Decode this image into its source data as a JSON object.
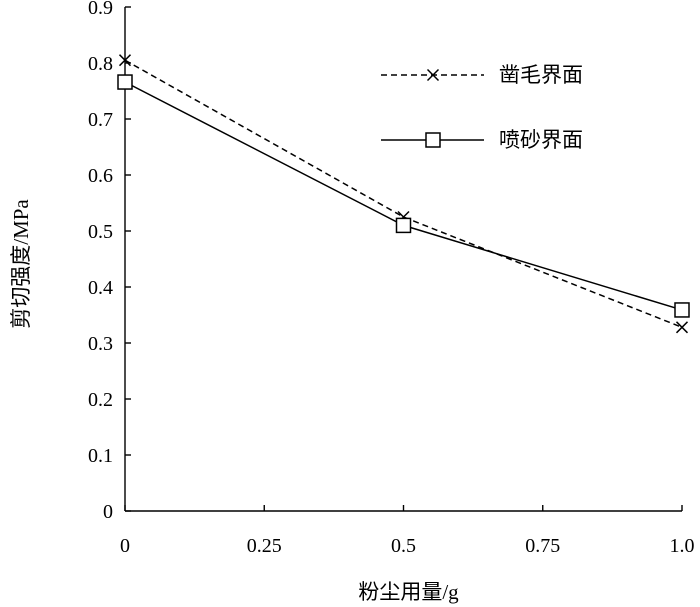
{
  "chart_data": {
    "type": "line",
    "xlabel": "粉尘用量/g",
    "ylabel": "剪切强度/MPa",
    "xlim": [
      0,
      1.0
    ],
    "ylim": [
      0,
      0.9
    ],
    "xticks": [
      0,
      0.25,
      0.5,
      0.75,
      1.0
    ],
    "xtick_labels": [
      "0",
      "0.25",
      "0.5",
      "0.75",
      "1.0"
    ],
    "yticks": [
      0,
      0.1,
      0.2,
      0.3,
      0.4,
      0.5,
      0.6,
      0.7,
      0.8,
      0.9
    ],
    "ytick_labels": [
      "0",
      "0.1",
      "0.2",
      "0.3",
      "0.4",
      "0.5",
      "0.6",
      "0.7",
      "0.8",
      "0.9"
    ],
    "grid": false,
    "legend_position": "top-right",
    "series": [
      {
        "name": "凿毛界面",
        "marker": "x",
        "line_style": "dashed",
        "color": "#000000",
        "x": [
          0,
          0.5,
          1.0
        ],
        "y": [
          0.805,
          0.525,
          0.328
        ]
      },
      {
        "name": "喷砂界面",
        "marker": "square",
        "line_style": "solid",
        "color": "#000000",
        "x": [
          0,
          0.5,
          1.0
        ],
        "y": [
          0.766,
          0.51,
          0.359
        ]
      }
    ]
  }
}
